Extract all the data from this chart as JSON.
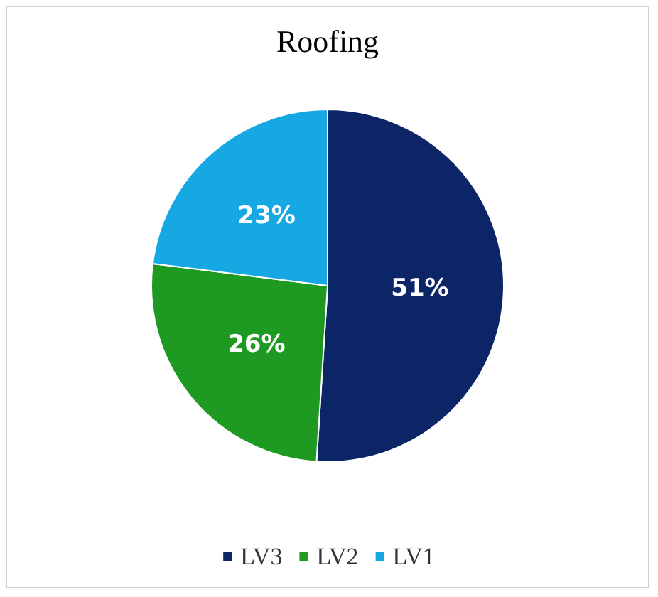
{
  "chart_data": {
    "type": "pie",
    "title": "Roofing",
    "categories": [
      "LV3",
      "LV2",
      "LV1"
    ],
    "values": [
      51,
      26,
      23
    ],
    "colors": [
      "#0b2566",
      "#1e9a22",
      "#16a8e3"
    ],
    "value_labels": [
      "51%",
      "26%",
      "23%"
    ],
    "legend": "bottom"
  }
}
